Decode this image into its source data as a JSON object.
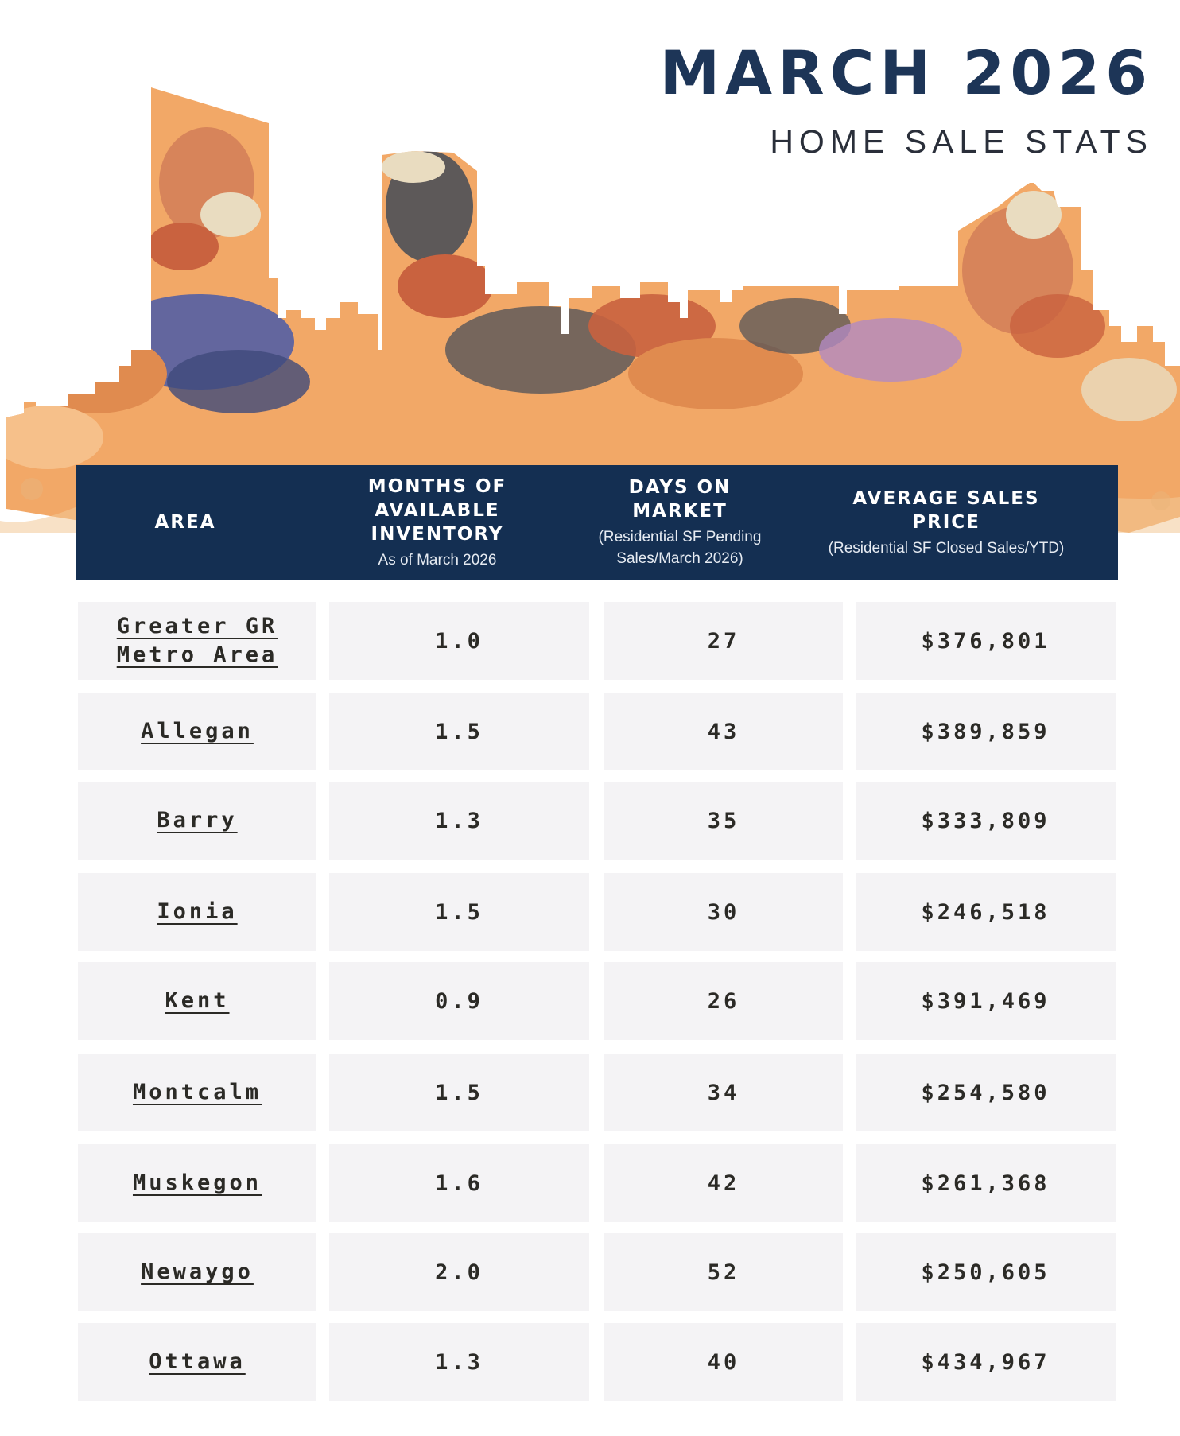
{
  "header": {
    "title": "MARCH 2026",
    "subtitle": "HOME SALE STATS"
  },
  "table": {
    "columns": [
      {
        "label": "AREA",
        "note": ""
      },
      {
        "label": "MONTHS OF AVAILABLE INVENTORY",
        "note": "As of March 2026"
      },
      {
        "label": "DAYS ON MARKET",
        "note": "(Residential SF Pending Sales/March 2026)"
      },
      {
        "label": "AVERAGE SALES PRICE",
        "note": "(Residential SF Closed Sales/YTD)"
      }
    ],
    "rows": [
      {
        "area": "Greater GR Metro Area",
        "inventory": "1.0",
        "days": "27",
        "price": "$376,801"
      },
      {
        "area": "Allegan",
        "inventory": "1.5",
        "days": "43",
        "price": "$389,859"
      },
      {
        "area": "Barry",
        "inventory": "1.3",
        "days": "35",
        "price": "$333,809"
      },
      {
        "area": "Ionia",
        "inventory": "1.5",
        "days": "30",
        "price": "$246,518"
      },
      {
        "area": "Kent",
        "inventory": "0.9",
        "days": "26",
        "price": "$391,469"
      },
      {
        "area": "Montcalm",
        "inventory": "1.5",
        "days": "34",
        "price": "$254,580"
      },
      {
        "area": "Muskegon",
        "inventory": "1.6",
        "days": "42",
        "price": "$261,368"
      },
      {
        "area": "Newaygo",
        "inventory": "2.0",
        "days": "52",
        "price": "$250,605"
      },
      {
        "area": "Ottawa",
        "inventory": "1.3",
        "days": "40",
        "price": "$434,967"
      }
    ]
  },
  "colors": {
    "title": "#1d3557",
    "header_bar": "#142f52",
    "cell_bg": "#f4f3f5",
    "skyline_orange": "#f2a867",
    "skyline_rust": "#c9623f",
    "skyline_slate": "#4c5058",
    "skyline_blue": "#4a5aa8",
    "skyline_cream": "#e9dcc0"
  }
}
